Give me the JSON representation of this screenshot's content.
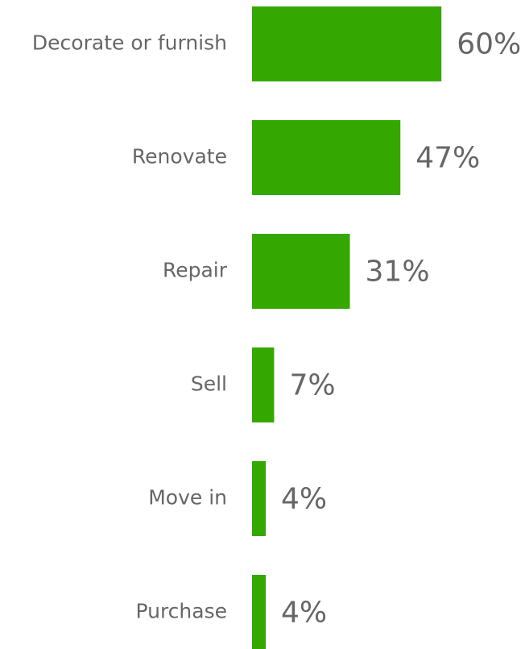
{
  "chart_data": {
    "type": "bar",
    "orientation": "horizontal",
    "categories": [
      "Decorate or furnish",
      "Renovate",
      "Repair",
      "Sell",
      "Move in",
      "Purchase"
    ],
    "values": [
      60,
      47,
      31,
      7,
      4,
      4
    ],
    "value_labels": [
      "60%",
      "47%",
      "31%",
      "7%",
      "4%",
      "4%"
    ],
    "color": "#34a800"
  }
}
